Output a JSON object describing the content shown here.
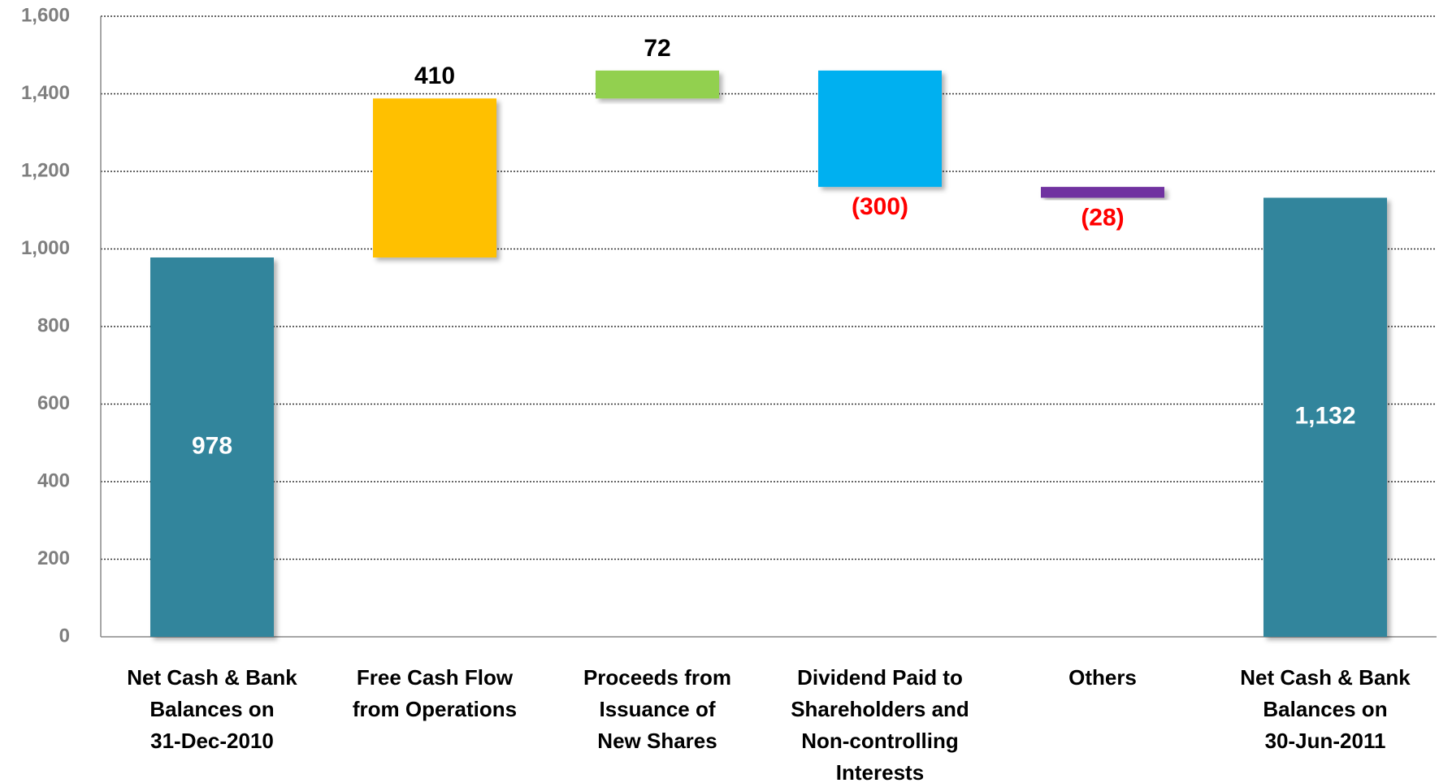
{
  "chart_data": {
    "type": "waterfall",
    "categories": [
      "Net Cash & Bank\nBalances on\n31-Dec-2010",
      "Free Cash Flow\nfrom Operations",
      "Proceeds from\nIssuance of\nNew Shares",
      "Dividend Paid to\nShareholders and\nNon-controlling\nInterests",
      "Others",
      "Net Cash & Bank\nBalances on\n30-Jun-2011"
    ],
    "values": [
      978,
      410,
      72,
      -300,
      -28,
      1132
    ],
    "value_labels": [
      "978",
      "410",
      "72",
      "(300)",
      "(28)",
      "1,132"
    ],
    "colors": [
      "#31859c",
      "#ffc000",
      "#92d050",
      "#00b0f0",
      "#7030a0",
      "#31859c"
    ],
    "ylim": [
      0,
      1600
    ],
    "yticks": [
      0,
      200,
      400,
      600,
      800,
      {
        "value": 1000,
        "label": "1,000"
      },
      {
        "value": 1200,
        "label": "1,200"
      },
      {
        "value": 1400,
        "label": "1,400"
      },
      {
        "value": 1600,
        "label": "1,600"
      }
    ],
    "grid": true
  }
}
